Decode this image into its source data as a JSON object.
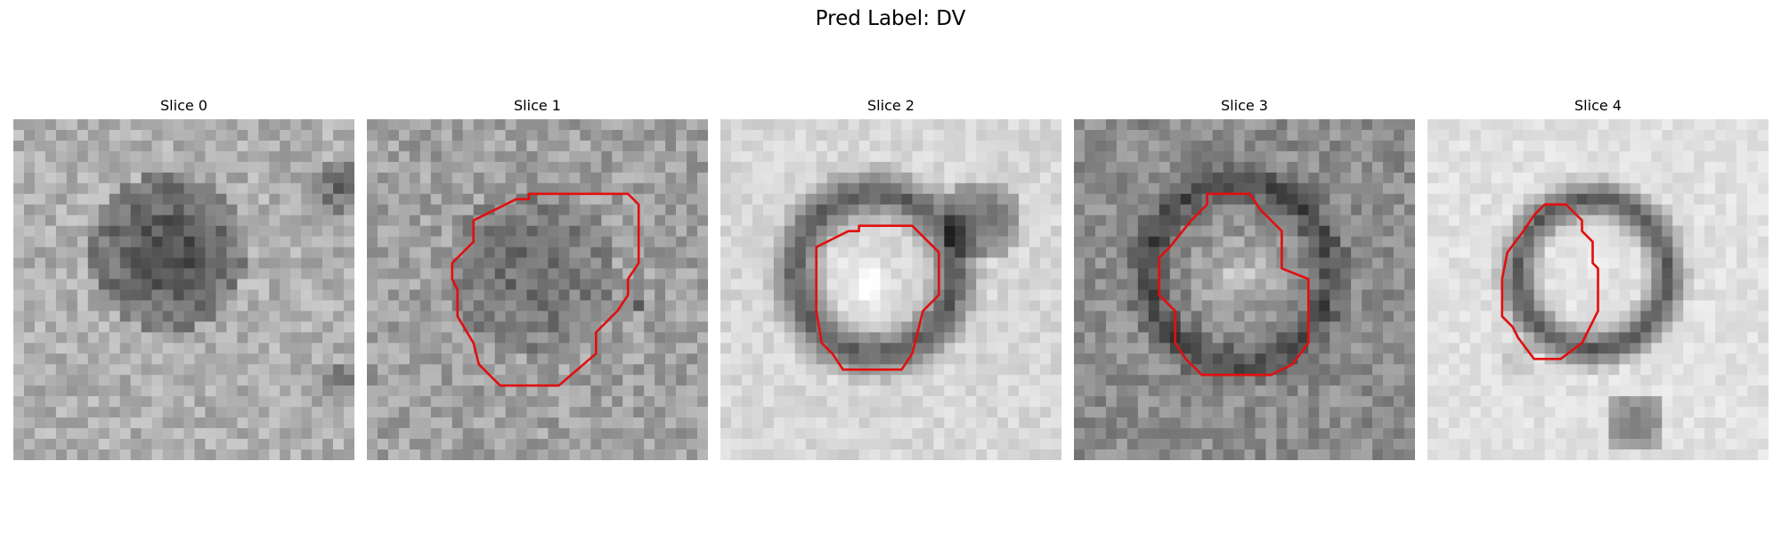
{
  "figure": {
    "title": "Pred Label: DV",
    "panels": [
      {
        "title": "Slice 0",
        "image": "grayscale-mri-slice",
        "overlay": "none"
      },
      {
        "title": "Slice 1",
        "image": "grayscale-mri-slice",
        "overlay": "red-contour"
      },
      {
        "title": "Slice 2",
        "image": "grayscale-mri-slice",
        "overlay": "red-contour"
      },
      {
        "title": "Slice 3",
        "image": "grayscale-mri-slice",
        "overlay": "red-contour"
      },
      {
        "title": "Slice 4",
        "image": "grayscale-mri-slice",
        "overlay": "red-contour"
      }
    ],
    "contour_color": "#e01010"
  }
}
